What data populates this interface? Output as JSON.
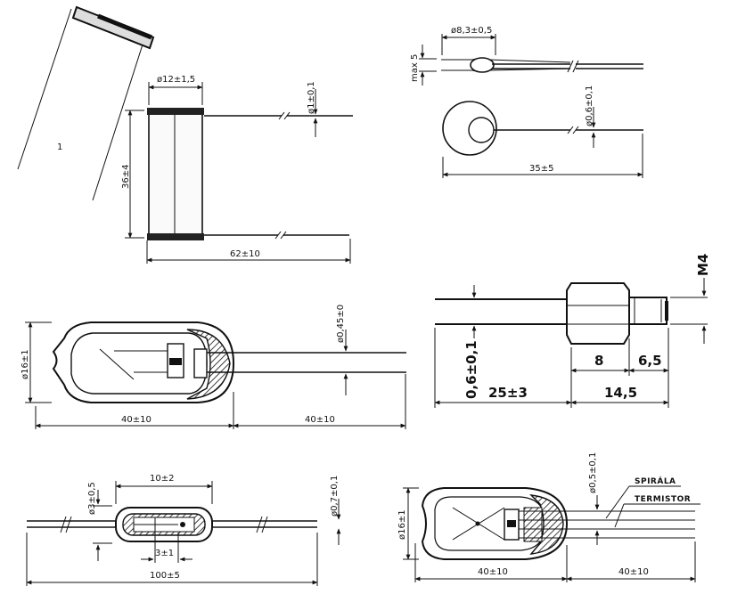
{
  "drawing_1": {
    "diameter": "ø12±1,5",
    "wire_diameter": "ø1±0,1",
    "height": "36±4",
    "total_length": "62±10",
    "figure_marker": "1"
  },
  "drawing_2": {
    "diameter": "ø8,3±0,5",
    "max_height": "max 5",
    "wire_diameter": "ø0,6±0,1",
    "length": "35±5"
  },
  "drawing_3": {
    "diameter": "ø16±1",
    "wire_diameter": "ø0,45±0",
    "body_length": "40±10",
    "lead_length": "40±10"
  },
  "drawing_4": {
    "thread": "M4",
    "wire_diameter": "0,6±0,1",
    "lead_length": "25±3",
    "nut_length": "8",
    "thread_length": "6,5",
    "body_length": "14,5"
  },
  "drawing_5": {
    "diameter": "ø3±0,5",
    "body_length": "10±2",
    "wire_diameter": "ø0,7±0,1",
    "element_length": "3±1",
    "total_length": "100±5"
  },
  "drawing_6": {
    "diameter": "ø16±1",
    "wire_diameter": "ø0,5±0,1",
    "label_spiral": "SPIRÁLA",
    "label_thermistor": "TERMISTOR",
    "body_length": "40±10",
    "lead_length": "40±10"
  }
}
